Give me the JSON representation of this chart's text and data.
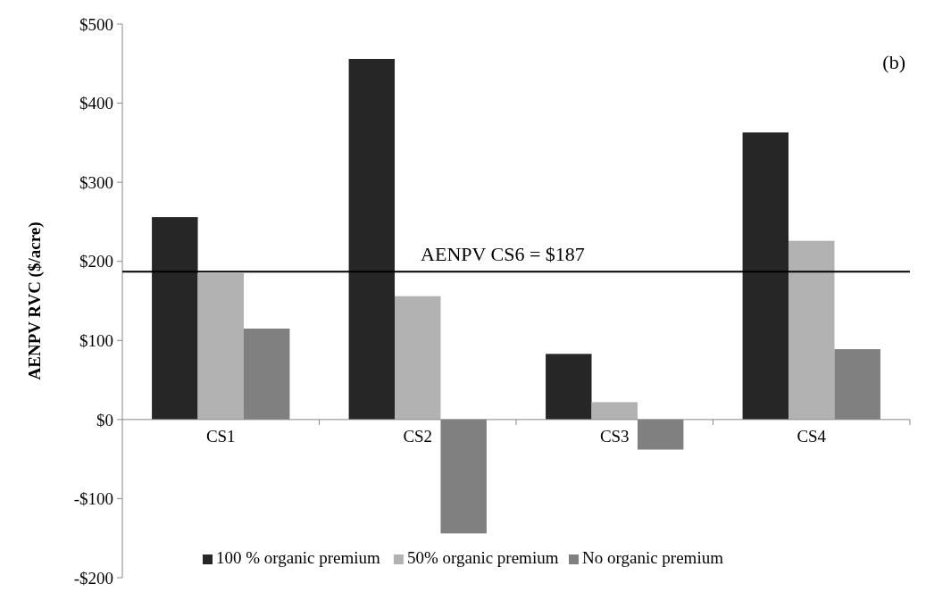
{
  "chart_data": {
    "type": "bar",
    "ylabel": "AENPV RVC ($/acre)",
    "categories": [
      "CS1",
      "CS2",
      "CS3",
      "CS4"
    ],
    "series": [
      {
        "name": "100 % organic premium",
        "color": "#262626",
        "values": [
          256,
          456,
          83,
          363
        ]
      },
      {
        "name": "50% organic premium",
        "color": "#b2b2b2",
        "values": [
          185,
          156,
          22,
          226
        ]
      },
      {
        "name": "No organic premium",
        "color": "#808080",
        "values": [
          115,
          -144,
          -38,
          89
        ]
      }
    ],
    "ylim": [
      -200,
      500
    ],
    "yticks": [
      {
        "value": -200,
        "label": "-$200"
      },
      {
        "value": -100,
        "label": "-$100"
      },
      {
        "value": 0,
        "label": "$0"
      },
      {
        "value": 100,
        "label": "$100"
      },
      {
        "value": 200,
        "label": "$200"
      },
      {
        "value": 300,
        "label": "$300"
      },
      {
        "value": 400,
        "label": "$400"
      },
      {
        "value": 500,
        "label": "$500"
      }
    ],
    "ref_lines": [
      {
        "axis": "y",
        "value": 187,
        "label": "AENPV CS6 = $187",
        "color": "#000000"
      }
    ],
    "annotations": [
      "(b)"
    ],
    "legend": "bottom",
    "grid": false
  }
}
